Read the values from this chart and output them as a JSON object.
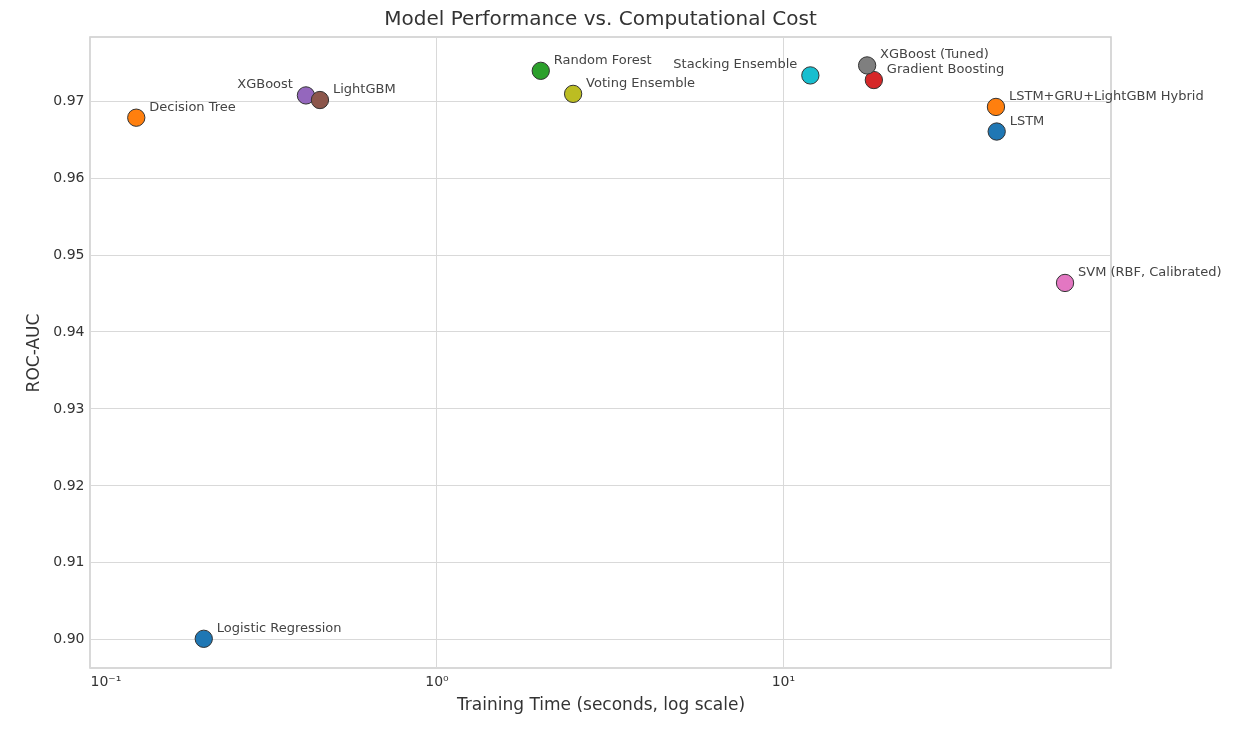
{
  "chart_data": {
    "type": "scatter",
    "title": "Model Performance vs. Computational Cost",
    "xlabel": "Training Time (seconds, log scale)",
    "ylabel": "ROC-AUC",
    "log": "x",
    "grid": true,
    "marker": "circle",
    "legend": false,
    "xlim": [
      0.1,
      88.5
    ],
    "xticks": [
      {
        "value": 0.1,
        "label": "10⁻¹"
      },
      {
        "value": 1,
        "label": "10⁰"
      },
      {
        "value": 10,
        "label": "10¹"
      }
    ],
    "ylim": [
      0.8962,
      0.9783
    ],
    "yticks": [
      {
        "value": 0.9,
        "label": "0.90"
      },
      0.91,
      0.92,
      0.93,
      0.94,
      0.95,
      0.96,
      0.97
    ],
    "series": [
      {
        "name": "Logistic Regression",
        "color": "#1f77b4",
        "x": [
          0.213
        ],
        "values": [
          0.9
        ]
      },
      {
        "name": "Decision Tree",
        "color": "#ff7f0e",
        "x": [
          0.136
        ],
        "values": [
          0.9678
        ]
      },
      {
        "name": "Random Forest",
        "color": "#2ca02c",
        "x": [
          2.0
        ],
        "values": [
          0.9739
        ]
      },
      {
        "name": "Gradient Boosting",
        "color": "#d62728",
        "x": [
          18.3
        ],
        "values": [
          0.9727
        ]
      },
      {
        "name": "XGBoost",
        "color": "#9467bd",
        "x": [
          0.42
        ],
        "values": [
          0.9707
        ]
      },
      {
        "name": "LightGBM",
        "color": "#8c564b",
        "x": [
          0.461
        ],
        "values": [
          0.9701
        ]
      },
      {
        "name": "SVM (RBF, Calibrated)",
        "color": "#e377c2",
        "x": [
          65.2
        ],
        "values": [
          0.9463
        ]
      },
      {
        "name": "XGBoost (Tuned)",
        "color": "#7f7f7f",
        "x": [
          17.5
        ],
        "values": [
          0.9746
        ]
      },
      {
        "name": "Voting Ensemble",
        "color": "#bcbd22",
        "x": [
          2.48
        ],
        "values": [
          0.9709
        ]
      },
      {
        "name": "Stacking Ensemble",
        "color": "#17becf",
        "x": [
          12.0
        ],
        "values": [
          0.9733
        ]
      },
      {
        "name": "LSTM",
        "color": "#1f77b4",
        "x": [
          41.4
        ],
        "values": [
          0.966
        ]
      },
      {
        "name": "LSTM+GRU+LightGBM Hybrid",
        "color": "#ff7f0e",
        "x": [
          41.2
        ],
        "values": [
          0.9692
        ]
      }
    ]
  }
}
